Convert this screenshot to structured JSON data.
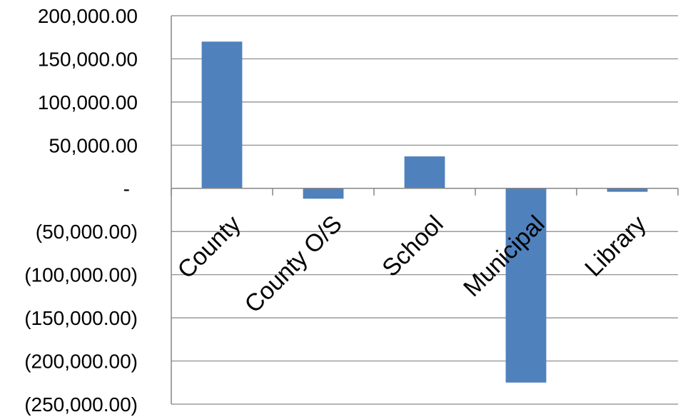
{
  "chart_data": {
    "type": "bar",
    "categories": [
      "County",
      "County O/S",
      "School",
      "Municipal",
      "Library"
    ],
    "values": [
      170000,
      -12000,
      37000,
      -225000,
      -4000
    ],
    "ylim": [
      -250000,
      200000
    ],
    "y_ticks": [
      200000,
      150000,
      100000,
      50000,
      0,
      -50000,
      -100000,
      -150000,
      -200000,
      -250000
    ],
    "y_tick_labels": [
      "200,000.00",
      "150,000.00",
      "100,000.00",
      "50,000.00",
      "-",
      "(50,000.00)",
      "(100,000.00)",
      "(150,000.00)",
      "(200,000.00)",
      "(250,000.00)"
    ],
    "grid": true,
    "legend": "none",
    "bar_color": "#4F81BD"
  }
}
